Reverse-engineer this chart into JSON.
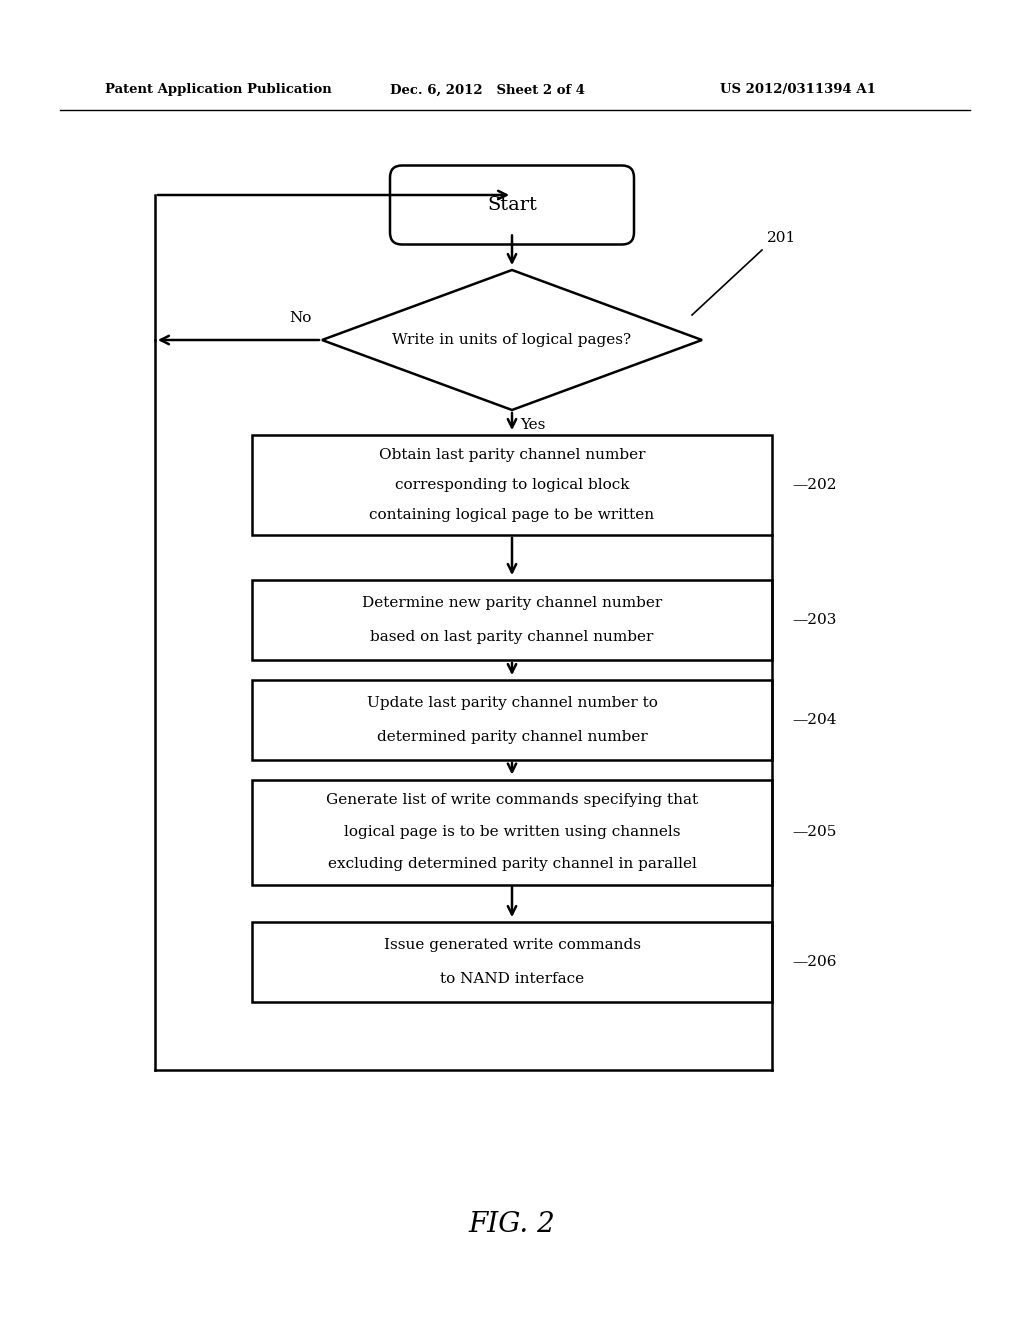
{
  "header_left": "Patent Application Publication",
  "header_middle": "Dec. 6, 2012   Sheet 2 of 4",
  "header_right": "US 2012/0311394 A1",
  "fig_label": "FIG. 2",
  "start_label": "Start",
  "diamond_label": "Write in units of logical pages?",
  "diamond_ref": "201",
  "yes_label": "Yes",
  "no_label": "No",
  "boxes": [
    {
      "ref": "202",
      "lines": [
        "Obtain last parity channel number",
        "corresponding to logical block",
        "containing logical page to be written"
      ]
    },
    {
      "ref": "203",
      "lines": [
        "Determine new parity channel number",
        "based on last parity channel number"
      ]
    },
    {
      "ref": "204",
      "lines": [
        "Update last parity channel number to",
        "determined parity channel number"
      ]
    },
    {
      "ref": "205",
      "lines": [
        "Generate list of write commands specifying that",
        "logical page is to be written using channels",
        "excluding determined parity channel in parallel"
      ]
    },
    {
      "ref": "206",
      "lines": [
        "Issue generated write commands",
        "to NAND interface"
      ]
    }
  ],
  "bg_color": "#ffffff",
  "line_color": "#000000",
  "text_color": "#000000"
}
